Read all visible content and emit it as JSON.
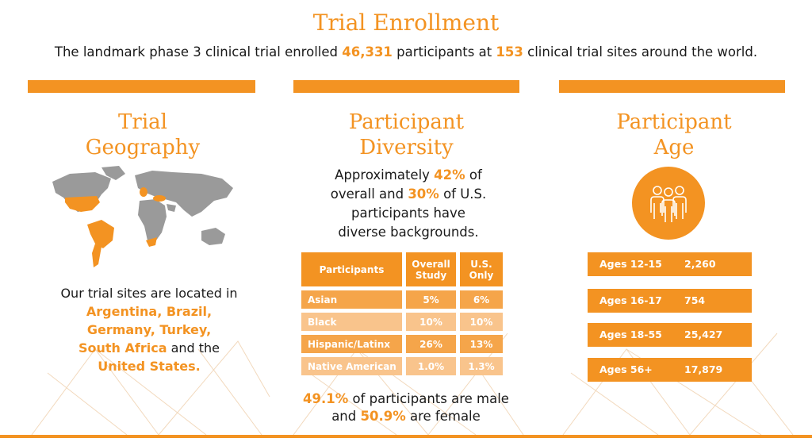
{
  "header": {
    "title": "Trial Enrollment",
    "subtitle_parts": [
      "The landmark phase 3 clinical trial enrolled ",
      "46,331",
      " participants at ",
      "153",
      " clinical trial sites around the world."
    ]
  },
  "geography": {
    "title_line1": "Trial",
    "title_line2": "Geography",
    "text_parts": [
      "Our trial sites are located in",
      "Argentina, Brazil,",
      "Germany, Turkey,",
      "South Africa",
      " and the",
      "United States."
    ]
  },
  "diversity": {
    "title_line1": "Participant",
    "title_line2": "Diversity",
    "intro_parts": [
      "Approximately ",
      "42%",
      " of",
      "overall and ",
      "30%",
      " of U.S.",
      "participants have",
      "diverse backgrounds."
    ],
    "table": {
      "headers": [
        "Participants",
        "Overall Study",
        "U.S. Only"
      ],
      "rows": [
        [
          "Asian",
          "5%",
          "6%"
        ],
        [
          "Black",
          "10%",
          "10%"
        ],
        [
          "Hispanic/Latinx",
          "26%",
          "13%"
        ],
        [
          "Native American",
          "1.0%",
          "1.3%"
        ]
      ]
    },
    "sex_parts": [
      "49.1%",
      " of participants are male",
      "and ",
      "50.9%",
      " are female"
    ]
  },
  "age": {
    "title_line1": "Participant",
    "title_line2": "Age",
    "icon": "people-group-icon",
    "rows": [
      {
        "label": "Ages 12-15",
        "value": "2,260"
      },
      {
        "label": "Ages 16-17",
        "value": "754"
      },
      {
        "label": "Ages 18-55",
        "value": "25,427"
      },
      {
        "label": "Ages 56+",
        "value": "17,879"
      }
    ]
  },
  "colors": {
    "accent": "#f39322",
    "light": "#f9c48c",
    "mid": "#f5a54a",
    "map_gray": "#9a9a9a"
  }
}
